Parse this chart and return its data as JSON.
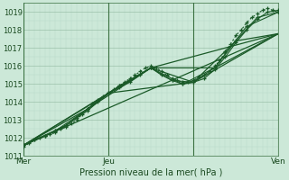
{
  "title": "",
  "xlabel": "Pression niveau de la mer( hPa )",
  "bg_color": "#cce8d8",
  "grid_color_minor": "#b8d8c8",
  "grid_color_major": "#90b8a0",
  "line_color": "#1a5a28",
  "ylim": [
    1011.0,
    1019.5
  ],
  "xlim": [
    0,
    48
  ],
  "xtick_positions": [
    0,
    16,
    32,
    48
  ],
  "xtick_labels": [
    "Mer",
    "Jeu",
    "",
    "Ven"
  ],
  "ytick_positions": [
    1011,
    1012,
    1013,
    1014,
    1015,
    1016,
    1017,
    1018,
    1019
  ],
  "vline_positions": [
    0,
    16,
    32,
    48
  ],
  "series": [
    {
      "x": [
        0,
        1,
        2,
        3,
        4,
        5,
        6,
        7,
        8,
        9,
        10,
        11,
        12,
        13,
        14,
        15,
        16,
        17,
        18,
        19,
        20,
        21,
        22,
        23,
        24,
        25,
        26,
        27,
        28,
        29,
        30,
        31,
        32,
        33,
        34,
        35,
        36,
        37,
        38,
        39,
        40,
        41,
        42,
        43,
        44,
        45,
        46,
        47,
        48
      ],
      "y": [
        1011.5,
        1011.7,
        1011.9,
        1012.0,
        1012.1,
        1012.2,
        1012.3,
        1012.5,
        1012.6,
        1012.8,
        1013.0,
        1013.3,
        1013.6,
        1013.9,
        1014.1,
        1014.3,
        1014.5,
        1014.7,
        1014.9,
        1015.1,
        1015.3,
        1015.5,
        1015.7,
        1015.9,
        1016.0,
        1015.9,
        1015.7,
        1015.5,
        1015.3,
        1015.2,
        1015.1,
        1015.1,
        1015.2,
        1015.4,
        1015.5,
        1015.7,
        1016.0,
        1016.3,
        1016.8,
        1017.2,
        1017.7,
        1018.0,
        1018.4,
        1018.7,
        1018.9,
        1019.1,
        1019.2,
        1019.1,
        1019.0
      ],
      "style": "dotted",
      "marker": "+"
    },
    {
      "x": [
        0,
        2,
        4,
        6,
        8,
        10,
        12,
        14,
        16,
        18,
        20,
        22,
        24,
        26,
        28,
        30,
        32,
        34,
        36,
        38,
        40,
        42,
        44,
        46,
        48
      ],
      "y": [
        1011.6,
        1011.9,
        1012.1,
        1012.4,
        1012.7,
        1013.1,
        1013.5,
        1014.0,
        1014.5,
        1014.8,
        1015.1,
        1015.5,
        1015.9,
        1015.5,
        1015.2,
        1015.0,
        1015.1,
        1015.3,
        1015.8,
        1016.5,
        1017.3,
        1018.0,
        1018.6,
        1019.0,
        1019.1
      ],
      "style": "solid",
      "marker": "+"
    },
    {
      "x": [
        0,
        4,
        8,
        12,
        16,
        20,
        24,
        28,
        32,
        36,
        40,
        44,
        48
      ],
      "y": [
        1011.6,
        1012.1,
        1012.7,
        1013.6,
        1014.5,
        1015.2,
        1015.9,
        1015.2,
        1015.1,
        1015.9,
        1017.4,
        1018.7,
        1019.0
      ],
      "style": "solid",
      "marker": "+"
    },
    {
      "x": [
        0,
        6,
        12,
        18,
        24,
        30,
        36,
        42,
        48
      ],
      "y": [
        1011.6,
        1012.4,
        1013.6,
        1014.9,
        1015.9,
        1015.0,
        1015.9,
        1018.2,
        1019.0
      ],
      "style": "solid",
      "marker": "+"
    },
    {
      "x": [
        0,
        8,
        16,
        24,
        32,
        40,
        48
      ],
      "y": [
        1011.6,
        1012.7,
        1014.5,
        1015.9,
        1015.1,
        1017.4,
        1017.8
      ],
      "style": "solid",
      "marker": null
    },
    {
      "x": [
        0,
        12,
        24,
        36,
        48
      ],
      "y": [
        1011.6,
        1013.6,
        1015.9,
        1015.9,
        1017.8
      ],
      "style": "solid",
      "marker": null
    },
    {
      "x": [
        0,
        16,
        32,
        48
      ],
      "y": [
        1011.6,
        1014.5,
        1015.1,
        1017.8
      ],
      "style": "solid",
      "marker": null
    },
    {
      "x": [
        0,
        24,
        48
      ],
      "y": [
        1011.6,
        1015.9,
        1017.8
      ],
      "style": "solid",
      "marker": null
    },
    {
      "x": [
        0,
        48
      ],
      "y": [
        1011.6,
        1017.8
      ],
      "style": "solid",
      "marker": null
    }
  ]
}
